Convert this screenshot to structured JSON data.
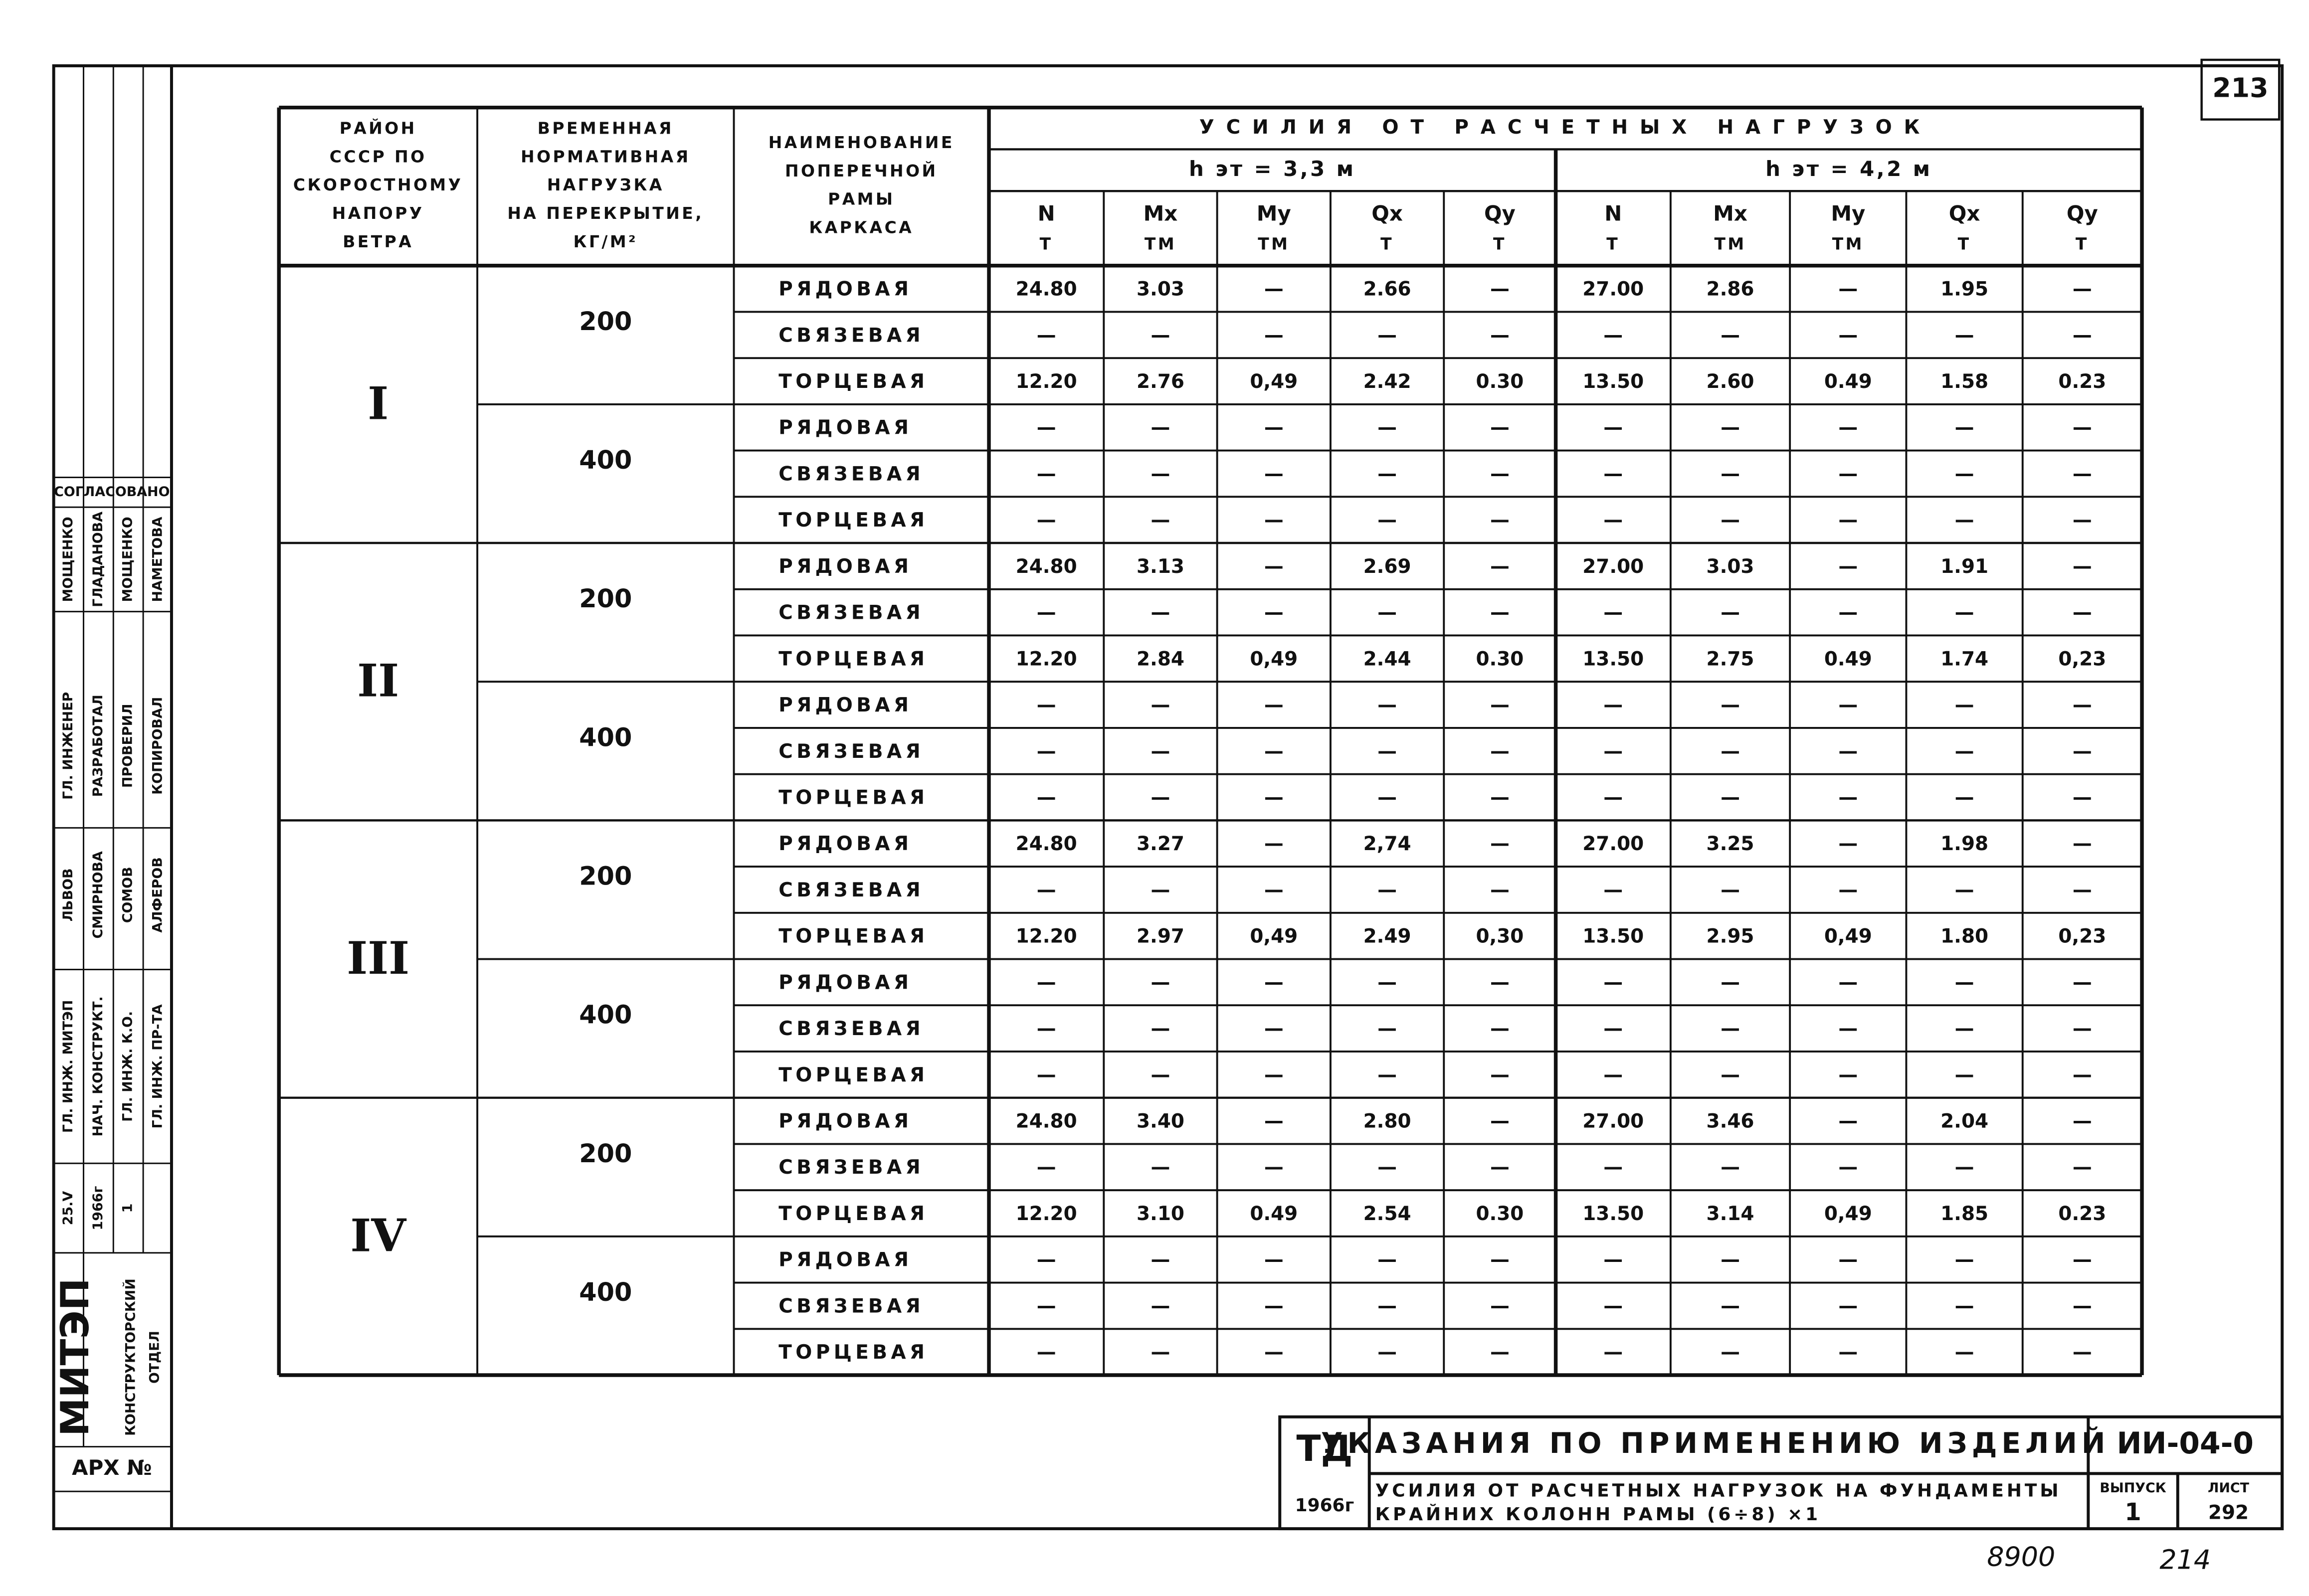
{
  "page_number": "213",
  "header": {
    "region": [
      "РАЙОН",
      "СССР ПО",
      "СКОРОСТНОМУ",
      "НАПОРУ",
      "ВЕТРА"
    ],
    "load": [
      "ВРЕМЕННАЯ",
      "НОРМАТИВНАЯ",
      "НАГРУЗКА",
      "НА ПЕРЕКРЫТИЕ,",
      "КГ/М²"
    ],
    "frame": [
      "НАИМЕНОВАНИЕ",
      "ПОПЕРЕЧНОЙ",
      "РАМЫ",
      "КАРКАСА"
    ],
    "forces": "УСИЛИЯ ОТ РАСЧЕТНЫХ НАГРУЗОК",
    "heights": [
      "h эт = 3,3 м",
      "h эт = 4,2 м"
    ],
    "columns": [
      {
        "symbol": "N",
        "unit": "Т"
      },
      {
        "symbol": "Mx",
        "unit": "ТМ"
      },
      {
        "symbol": "My",
        "unit": "ТМ"
      },
      {
        "symbol": "Qx",
        "unit": "Т"
      },
      {
        "symbol": "Qy",
        "unit": "Т"
      },
      {
        "symbol": "N",
        "unit": "Т"
      },
      {
        "symbol": "Mx",
        "unit": "ТМ"
      },
      {
        "symbol": "My",
        "unit": "ТМ"
      },
      {
        "symbol": "Qx",
        "unit": "Т"
      },
      {
        "symbol": "Qy",
        "unit": "Т"
      }
    ]
  },
  "regions": [
    {
      "label": "I",
      "loads": [
        {
          "load": "200",
          "frames": [
            {
              "name": "РЯДОВАЯ",
              "values": [
                "24.80",
                "3.03",
                "—",
                "2.66",
                "—",
                "27.00",
                "2.86",
                "—",
                "1.95",
                "—"
              ]
            },
            {
              "name": "СВЯЗЕВАЯ",
              "values": [
                "—",
                "—",
                "—",
                "—",
                "—",
                "—",
                "—",
                "—",
                "—",
                "—"
              ]
            },
            {
              "name": "ТОРЦЕВАЯ",
              "values": [
                "12.20",
                "2.76",
                "0,49",
                "2.42",
                "0.30",
                "13.50",
                "2.60",
                "0.49",
                "1.58",
                "0.23"
              ]
            }
          ]
        },
        {
          "load": "400",
          "frames": [
            {
              "name": "РЯДОВАЯ",
              "values": [
                "—",
                "—",
                "—",
                "—",
                "—",
                "—",
                "—",
                "—",
                "—",
                "—"
              ]
            },
            {
              "name": "СВЯЗЕВАЯ",
              "values": [
                "—",
                "—",
                "—",
                "—",
                "—",
                "—",
                "—",
                "—",
                "—",
                "—"
              ]
            },
            {
              "name": "ТОРЦЕВАЯ",
              "values": [
                "—",
                "—",
                "—",
                "—",
                "—",
                "—",
                "—",
                "—",
                "—",
                "—"
              ]
            }
          ]
        }
      ]
    },
    {
      "label": "II",
      "loads": [
        {
          "load": "200",
          "frames": [
            {
              "name": "РЯДОВАЯ",
              "values": [
                "24.80",
                "3.13",
                "—",
                "2.69",
                "—",
                "27.00",
                "3.03",
                "—",
                "1.91",
                "—"
              ]
            },
            {
              "name": "СВЯЗЕВАЯ",
              "values": [
                "—",
                "—",
                "—",
                "—",
                "—",
                "—",
                "—",
                "—",
                "—",
                "—"
              ]
            },
            {
              "name": "ТОРЦЕВАЯ",
              "values": [
                "12.20",
                "2.84",
                "0,49",
                "2.44",
                "0.30",
                "13.50",
                "2.75",
                "0.49",
                "1.74",
                "0,23"
              ]
            }
          ]
        },
        {
          "load": "400",
          "frames": [
            {
              "name": "РЯДОВАЯ",
              "values": [
                "—",
                "—",
                "—",
                "—",
                "—",
                "—",
                "—",
                "—",
                "—",
                "—"
              ]
            },
            {
              "name": "СВЯЗЕВАЯ",
              "values": [
                "—",
                "—",
                "—",
                "—",
                "—",
                "—",
                "—",
                "—",
                "—",
                "—"
              ]
            },
            {
              "name": "ТОРЦЕВАЯ",
              "values": [
                "—",
                "—",
                "—",
                "—",
                "—",
                "—",
                "—",
                "—",
                "—",
                "—"
              ]
            }
          ]
        }
      ]
    },
    {
      "label": "III",
      "loads": [
        {
          "load": "200",
          "frames": [
            {
              "name": "РЯДОВАЯ",
              "values": [
                "24.80",
                "3.27",
                "—",
                "2,74",
                "—",
                "27.00",
                "3.25",
                "—",
                "1.98",
                "—"
              ]
            },
            {
              "name": "СВЯЗЕВАЯ",
              "values": [
                "—",
                "—",
                "—",
                "—",
                "—",
                "—",
                "—",
                "—",
                "—",
                "—"
              ]
            },
            {
              "name": "ТОРЦЕВАЯ",
              "values": [
                "12.20",
                "2.97",
                "0,49",
                "2.49",
                "0,30",
                "13.50",
                "2.95",
                "0,49",
                "1.80",
                "0,23"
              ]
            }
          ]
        },
        {
          "load": "400",
          "frames": [
            {
              "name": "РЯДОВАЯ",
              "values": [
                "—",
                "—",
                "—",
                "—",
                "—",
                "—",
                "—",
                "—",
                "—",
                "—"
              ]
            },
            {
              "name": "СВЯЗЕВАЯ",
              "values": [
                "—",
                "—",
                "—",
                "—",
                "—",
                "—",
                "—",
                "—",
                "—",
                "—"
              ]
            },
            {
              "name": "ТОРЦЕВАЯ",
              "values": [
                "—",
                "—",
                "—",
                "—",
                "—",
                "—",
                "—",
                "—",
                "—",
                "—"
              ]
            }
          ]
        }
      ]
    },
    {
      "label": "IV",
      "loads": [
        {
          "load": "200",
          "frames": [
            {
              "name": "РЯДОВАЯ",
              "values": [
                "24.80",
                "3.40",
                "—",
                "2.80",
                "—",
                "27.00",
                "3.46",
                "—",
                "2.04",
                "—"
              ]
            },
            {
              "name": "СВЯЗЕВАЯ",
              "values": [
                "—",
                "—",
                "—",
                "—",
                "—",
                "—",
                "—",
                "—",
                "—",
                "—"
              ]
            },
            {
              "name": "ТОРЦЕВАЯ",
              "values": [
                "12.20",
                "3.10",
                "0.49",
                "2.54",
                "0.30",
                "13.50",
                "3.14",
                "0,49",
                "1.85",
                "0.23"
              ]
            }
          ]
        },
        {
          "load": "400",
          "frames": [
            {
              "name": "РЯДОВАЯ",
              "values": [
                "—",
                "—",
                "—",
                "—",
                "—",
                "—",
                "—",
                "—",
                "—",
                "—"
              ]
            },
            {
              "name": "СВЯЗЕВАЯ",
              "values": [
                "—",
                "—",
                "—",
                "—",
                "—",
                "—",
                "—",
                "—",
                "—",
                "—"
              ]
            },
            {
              "name": "ТОРЦЕВАЯ",
              "values": [
                "—",
                "—",
                "—",
                "—",
                "—",
                "—",
                "—",
                "—",
                "—",
                "—"
              ]
            }
          ]
        }
      ]
    }
  ],
  "title_block": {
    "org": "ТД",
    "year": "1966г",
    "title": "УКАЗАНИЯ ПО ПРИМЕНЕНИЮ ИЗДЕЛИЙ",
    "subtitle": [
      "УСИЛИЯ ОТ РАСЧЕТНЫХ НАГРУЗОК НА ФУНДАМЕНТЫ",
      "КРАЙНИХ КОЛОНН РАМЫ (6÷8) ×1"
    ],
    "code": "ИИ-04-0",
    "issue_label": "ВЫПУСК",
    "issue": "1",
    "sheet_label": "ЛИСТ",
    "sheet": "292"
  },
  "stamp": {
    "agreed": "СОГЛАСОВАНО",
    "texts": [
      "МОЩЕНКО",
      "ГЛАДАНОВА",
      "МОЩЕНКО",
      "НАМЕТОВА",
      "ГЛ. ИНЖЕНЕР",
      "РАЗРАБОТАЛ",
      "ПРОВЕРИЛ",
      "КОПИРОВАЛ",
      "ЛЬВОВ",
      "СМИРНОВА",
      "СОМОВ",
      "АЛФЕРОВ",
      "ГЛ. ИНЖ. МИТЭП",
      "НАЧ. КОНСТРУКТ.",
      "ГЛ. ИНЖ. К.О.",
      "ГЛ. ИНЖ. ПР-ТА",
      "25.V",
      "1966г",
      "1"
    ],
    "org": "МИТЭП",
    "dept": [
      "КОНСТРУКТОРСКИЙ",
      "ОТДЕЛ"
    ],
    "archive": "АРХ №"
  },
  "handwritten": [
    "8900",
    "214"
  ]
}
